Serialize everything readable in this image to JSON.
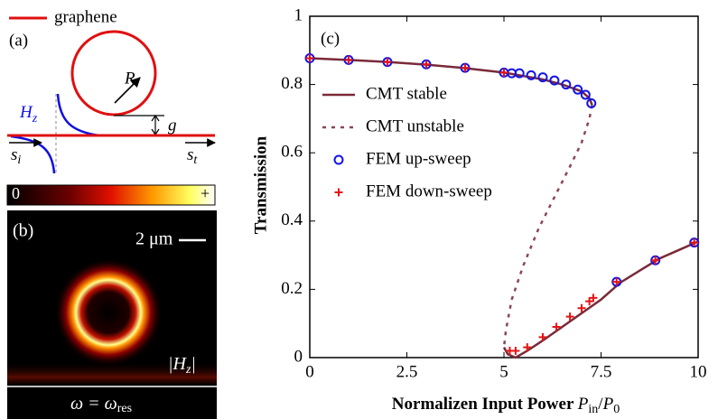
{
  "schematic": {
    "panel_label": "(a)",
    "graphene_label": "graphene",
    "radius_label": "R",
    "hz_symbol": "H",
    "hz_sub": "z",
    "gap_label": "g",
    "si_symbol": "s",
    "si_sub": "i",
    "st_symbol": "s",
    "st_sub": "t"
  },
  "colorbar": {
    "min_label": "0",
    "max_label": "+"
  },
  "field_map": {
    "panel_label": "(b)",
    "scale_label": "2 μm",
    "field_left": "|",
    "field_symbol": "H",
    "field_sub": "z",
    "field_right": "|",
    "freq_text": "ω = ω",
    "freq_sub": "res"
  },
  "chart_data": {
    "type": "line",
    "panel_label": "(c)",
    "ylabel": "Transmission",
    "xlabel_parts": [
      "Normalizen Input Power ",
      "P",
      "in",
      "/",
      "P",
      "0"
    ],
    "xlim": [
      0,
      10
    ],
    "xticks": [
      0,
      2.5,
      5,
      7.5,
      10
    ],
    "ylim": [
      0,
      1
    ],
    "yticks": [
      0,
      0.2,
      0.4,
      0.6,
      0.8,
      1
    ],
    "legend": "upper-left",
    "series": [
      {
        "name": "CMT stable",
        "color": "#7a2a38",
        "dashed": false,
        "marker": "none",
        "x": [
          0,
          1,
          2,
          3,
          4,
          5,
          6,
          6.5,
          7,
          7.2,
          7.27,
          null,
          5.0,
          5.1,
          5.3,
          5.6,
          6,
          6.5,
          7,
          7.5,
          8,
          8.5,
          9,
          9.5,
          10
        ],
        "values": [
          0.877,
          0.872,
          0.866,
          0.858,
          0.848,
          0.835,
          0.815,
          0.8,
          0.78,
          0.76,
          0.74,
          null,
          0.03,
          0.01,
          0,
          0.02,
          0.05,
          0.09,
          0.13,
          0.17,
          0.22,
          0.255,
          0.29,
          0.315,
          0.34
        ]
      },
      {
        "name": "CMT unstable",
        "color": "#8c4654",
        "dashed": true,
        "marker": "none",
        "x": [
          7.27,
          7.2,
          7.0,
          6.7,
          6.3,
          5.9,
          5.5,
          5.2,
          5.05,
          5.0
        ],
        "values": [
          0.74,
          0.7,
          0.63,
          0.56,
          0.47,
          0.38,
          0.27,
          0.17,
          0.08,
          0.03
        ]
      },
      {
        "name": "FEM up-sweep",
        "color": "#1414e6",
        "dashed": false,
        "marker": "circle",
        "x": [
          0,
          1,
          2,
          3,
          4,
          5,
          5.2,
          5.4,
          5.7,
          6.0,
          6.3,
          6.6,
          6.9,
          7.1,
          7.25,
          7.9,
          8.9,
          9.9
        ],
        "values": [
          0.877,
          0.872,
          0.866,
          0.859,
          0.849,
          0.835,
          0.833,
          0.833,
          0.827,
          0.821,
          0.812,
          0.8,
          0.785,
          0.77,
          0.745,
          0.222,
          0.285,
          0.337
        ]
      },
      {
        "name": "FEM down-sweep",
        "color": "#e61414",
        "dashed": false,
        "marker": "plus",
        "x": [
          0,
          1,
          2,
          3,
          4,
          5,
          5.15,
          5.3,
          5.6,
          6.0,
          6.35,
          6.7,
          7.0,
          7.2,
          7.3,
          7.9,
          8.9,
          9.9
        ],
        "values": [
          0.877,
          0.872,
          0.866,
          0.859,
          0.849,
          0.835,
          0.02,
          0.02,
          0.03,
          0.06,
          0.09,
          0.12,
          0.145,
          0.165,
          0.175,
          0.222,
          0.285,
          0.337
        ]
      }
    ]
  }
}
